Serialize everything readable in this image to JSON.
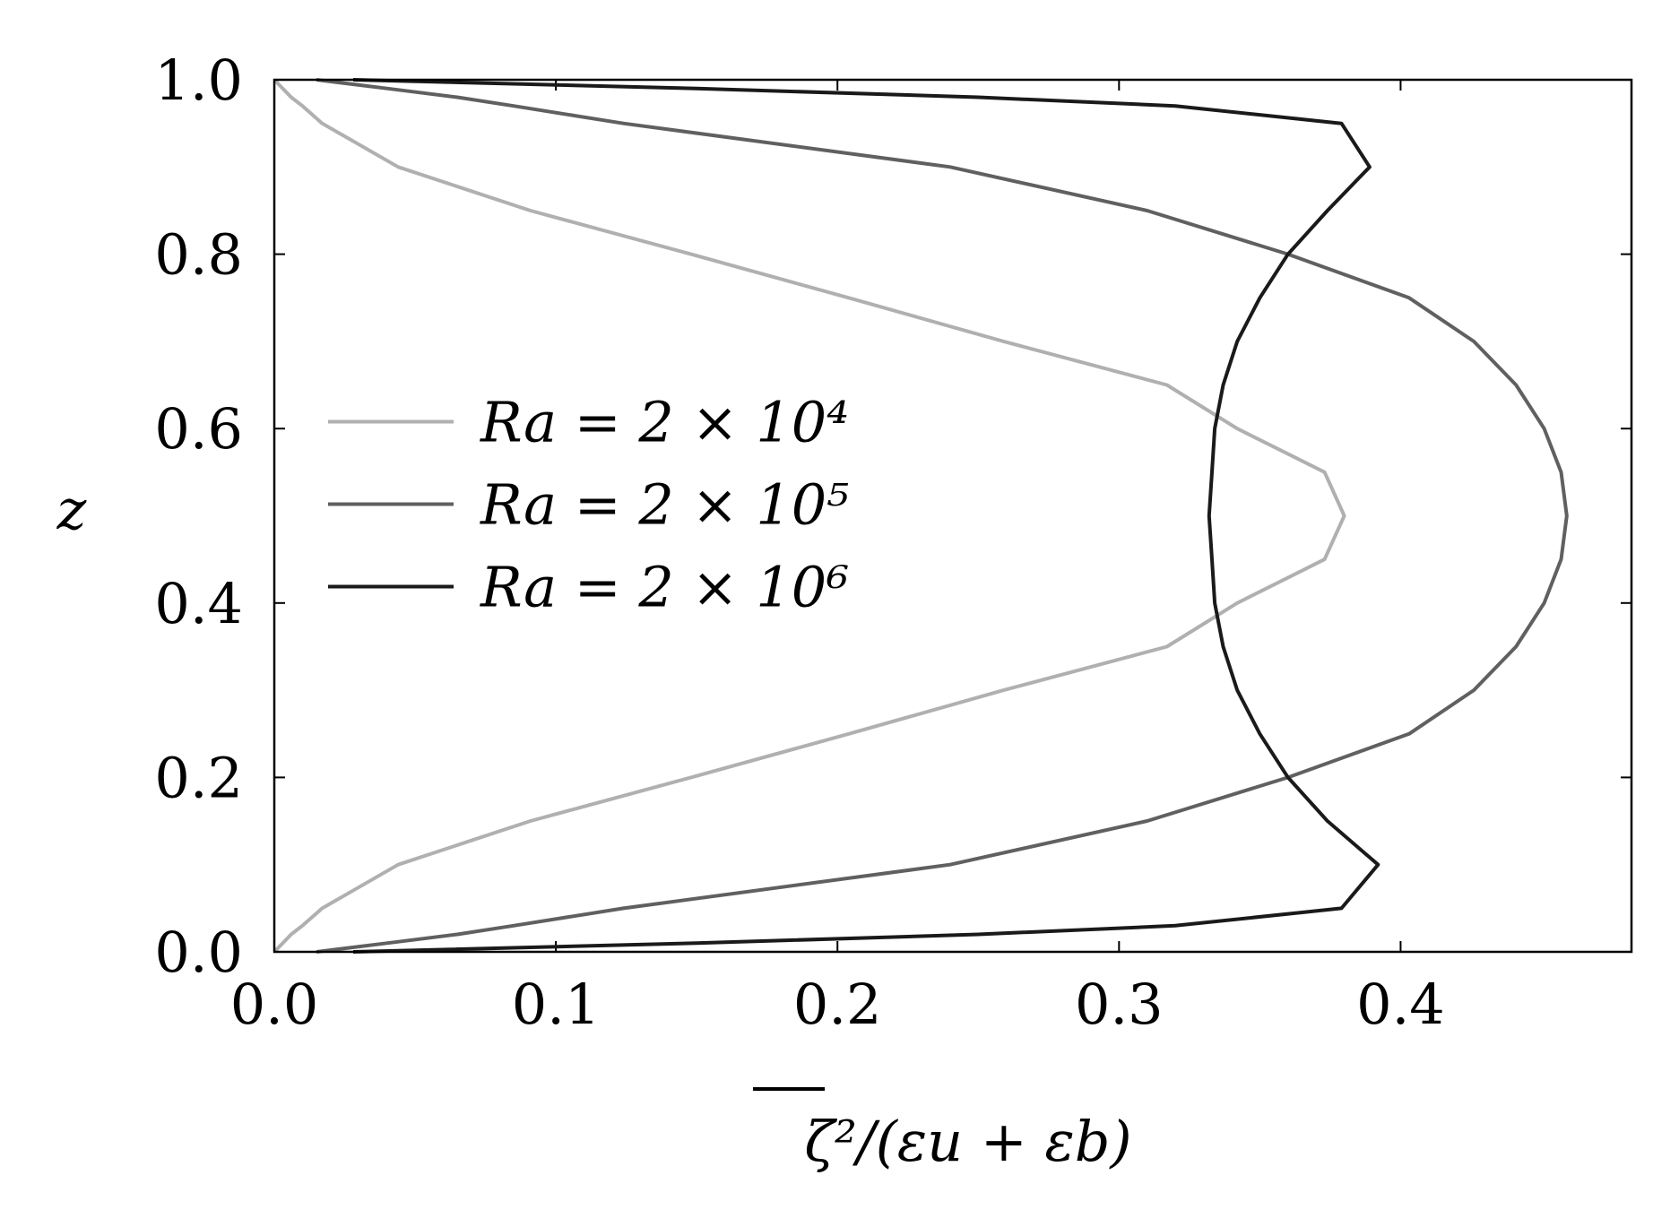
{
  "chart_data": {
    "type": "line",
    "xlabel": "ζ²/(εu + εb)",
    "ylabel": "z",
    "y": [
      0,
      0.01,
      0.02,
      0.03,
      0.05,
      0.1,
      0.15,
      0.2,
      0.25,
      0.3,
      0.35,
      0.4,
      0.45,
      0.5,
      0.55,
      0.6,
      0.65,
      0.7,
      0.75,
      0.8,
      0.85,
      0.9,
      0.95,
      0.97,
      0.98,
      0.99,
      1
    ],
    "series": [
      {
        "name": "Ra = 2 × 10⁴",
        "color": "#b0b0b0",
        "values": [
          0,
          0.003,
          0.006,
          0.01,
          0.017,
          0.044,
          0.091,
          0.148,
          0.204,
          0.259,
          0.317,
          0.342,
          0.373,
          0.38,
          0.373,
          0.342,
          0.317,
          0.259,
          0.204,
          0.148,
          0.091,
          0.044,
          0.017,
          0.01,
          0.006,
          0.003,
          0
        ]
      },
      {
        "name": "Ra = 2 × 10⁵",
        "color": "#606060",
        "values": [
          0.015,
          0.04,
          0.065,
          0.085,
          0.124,
          0.24,
          0.31,
          0.36,
          0.403,
          0.426,
          0.441,
          0.451,
          0.457,
          0.459,
          0.457,
          0.451,
          0.441,
          0.426,
          0.403,
          0.36,
          0.31,
          0.24,
          0.124,
          0.085,
          0.065,
          0.04,
          0.015
        ]
      },
      {
        "name": "Ra = 2 × 10⁶",
        "color": "#1a1a1a",
        "values": [
          0.028,
          0.15,
          0.25,
          0.32,
          0.379,
          0.392,
          0.374,
          0.36,
          0.35,
          0.342,
          0.337,
          0.334,
          0.333,
          0.332,
          0.333,
          0.334,
          0.337,
          0.342,
          0.35,
          0.36,
          0.374,
          0.389,
          0.379,
          0.32,
          0.25,
          0.15,
          0.028
        ]
      }
    ],
    "xlim": [
      0,
      0.482
    ],
    "ylim": [
      0,
      1
    ],
    "xticks": [
      {
        "value": 0,
        "label": "0.0"
      },
      0.1,
      0.2,
      0.3,
      0.4
    ],
    "yticks": [
      {
        "value": 0,
        "label": "0.0"
      },
      0.2,
      0.4,
      0.6,
      0.8,
      {
        "value": 1,
        "label": "1.0"
      }
    ],
    "legend": "center left"
  }
}
